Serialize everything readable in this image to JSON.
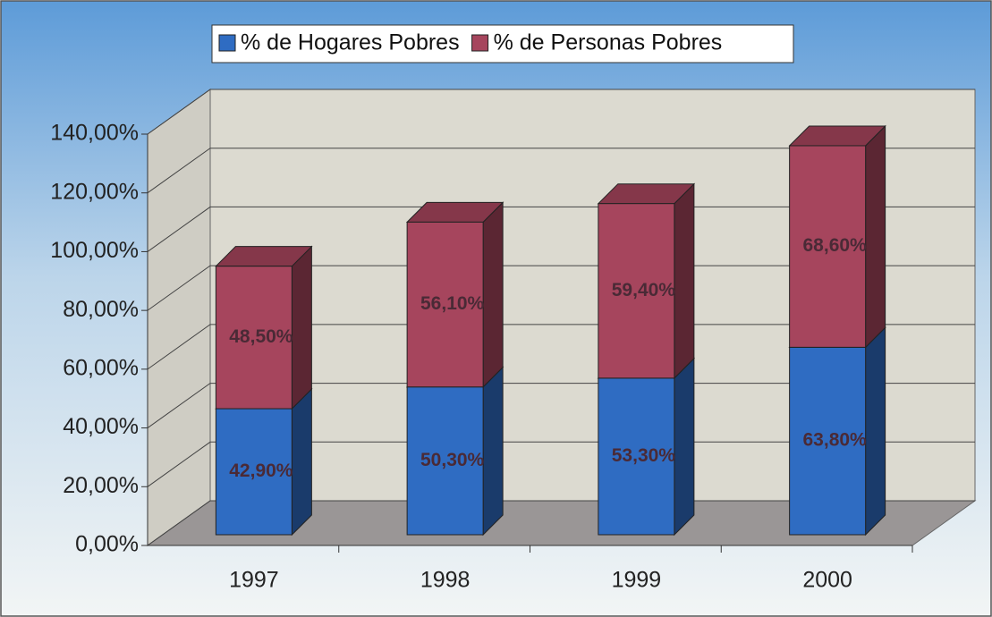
{
  "chart_data": {
    "type": "bar",
    "stacked": true,
    "three_d": true,
    "categories": [
      "1997",
      "1998",
      "1999",
      "2000"
    ],
    "series": [
      {
        "name": "% de Hogares Pobres",
        "color": "#2f6cc2",
        "values": [
          42.9,
          50.3,
          53.3,
          63.8
        ],
        "value_labels": [
          "42,90%",
          "50,30%",
          "53,30%",
          "63,80%"
        ]
      },
      {
        "name": "% de Personas Pobres",
        "color": "#a6455d",
        "values": [
          48.5,
          56.1,
          59.4,
          68.6
        ],
        "value_labels": [
          "48,50%",
          "56,10%",
          "59,40%",
          "68,60%"
        ]
      }
    ],
    "ylim": [
      0,
      140
    ],
    "yticks": [
      {
        "value": 0,
        "label": "0,00%"
      },
      {
        "value": 20,
        "label": "20,00%"
      },
      {
        "value": 40,
        "label": "40,00%"
      },
      {
        "value": 60,
        "label": "60,00%"
      },
      {
        "value": 80,
        "label": "80,00%"
      },
      {
        "value": 100,
        "label": "100,00%"
      },
      {
        "value": 120,
        "label": "120,00%"
      },
      {
        "value": 140,
        "label": "140,00%"
      }
    ],
    "grid": true,
    "legend": "top"
  }
}
